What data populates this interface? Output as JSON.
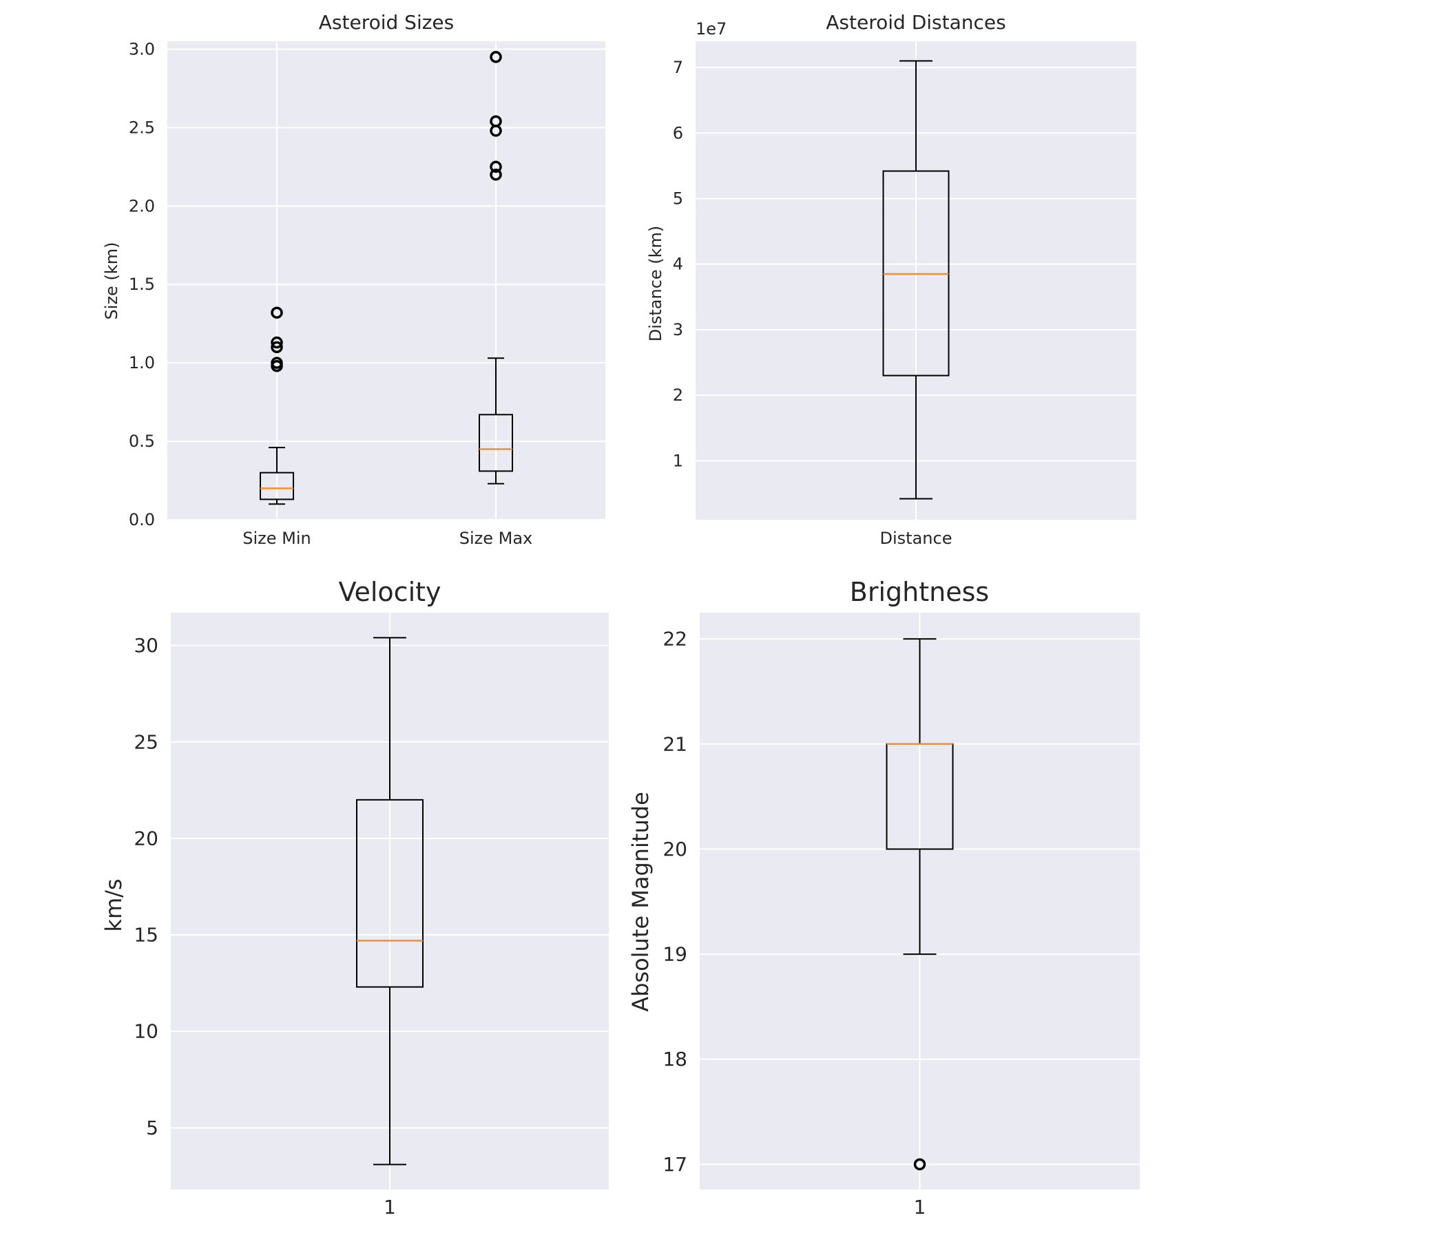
{
  "figure": {
    "background": "#ffffff"
  },
  "style": {
    "panel_background": "#eaeaf2",
    "grid_color": "#ffffff",
    "box_color": "#000000",
    "median_color": "#f28e2b",
    "text_color": "#262626"
  },
  "chart_data": [
    {
      "type": "box",
      "title": "Asteroid Sizes",
      "xlabel": "",
      "ylabel": "Size (km)",
      "ylim": [
        0,
        3.05
      ],
      "yticks": [
        0.0,
        0.5,
        1.0,
        1.5,
        2.0,
        2.5,
        3.0
      ],
      "ytick_labels": [
        "0.0",
        "0.5",
        "1.0",
        "1.5",
        "2.0",
        "2.5",
        "3.0"
      ],
      "categories": [
        "Size Min",
        "Size Max"
      ],
      "grid": true,
      "series": [
        {
          "name": "Size Min",
          "whisker_low": 0.1,
          "q1": 0.13,
          "median": 0.2,
          "q3": 0.3,
          "whisker_high": 0.46,
          "outliers": [
            0.98,
            1.0,
            1.1,
            1.13,
            1.32
          ]
        },
        {
          "name": "Size Max",
          "whisker_low": 0.23,
          "q1": 0.31,
          "median": 0.45,
          "q3": 0.67,
          "whisker_high": 1.03,
          "outliers": [
            2.2,
            2.25,
            2.48,
            2.54,
            2.95
          ]
        }
      ]
    },
    {
      "type": "box",
      "title": "Asteroid Distances",
      "xlabel": "",
      "ylabel": "Distance (km)",
      "scale_label": "1e7",
      "ylim": [
        1000000,
        74000000
      ],
      "yticks": [
        10000000,
        20000000,
        30000000,
        40000000,
        50000000,
        60000000,
        70000000
      ],
      "ytick_labels": [
        "1",
        "2",
        "3",
        "4",
        "5",
        "6",
        "7"
      ],
      "categories": [
        "Distance"
      ],
      "grid": true,
      "series": [
        {
          "name": "Distance",
          "whisker_low": 4200000,
          "q1": 23000000,
          "median": 38500000,
          "q3": 54200000,
          "whisker_high": 71000000,
          "outliers": []
        }
      ]
    },
    {
      "type": "box",
      "title": "Velocity",
      "xlabel": "",
      "ylabel": "km/s",
      "ylim": [
        1.8,
        31.7
      ],
      "yticks": [
        5,
        10,
        15,
        20,
        25,
        30
      ],
      "ytick_labels": [
        "5",
        "10",
        "15",
        "20",
        "25",
        "30"
      ],
      "categories": [
        "1"
      ],
      "grid": true,
      "series": [
        {
          "whisker_low": 3.1,
          "q1": 12.3,
          "median": 14.7,
          "q3": 22.0,
          "whisker_high": 30.4,
          "outliers": []
        }
      ]
    },
    {
      "type": "box",
      "title": "Brightness",
      "xlabel": "",
      "ylabel": "Absolute Magnitude",
      "ylim": [
        16.76,
        22.25
      ],
      "yticks": [
        17,
        18,
        19,
        20,
        21,
        22
      ],
      "ytick_labels": [
        "17",
        "18",
        "19",
        "20",
        "21",
        "22"
      ],
      "categories": [
        "1"
      ],
      "grid": true,
      "series": [
        {
          "whisker_low": 19.0,
          "q1": 20.0,
          "median": 21.0,
          "q3": 21.0,
          "whisker_high": 22.0,
          "outliers": [
            17.0
          ]
        }
      ]
    }
  ]
}
